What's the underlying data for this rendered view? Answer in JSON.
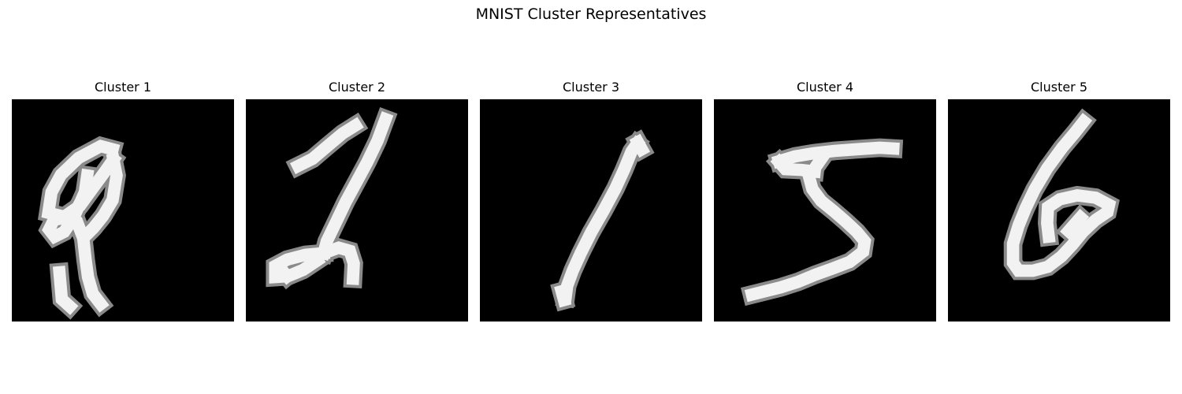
{
  "figure": {
    "title": "MNIST Cluster Representatives"
  },
  "panels": [
    {
      "title": "Cluster 1",
      "strokes": [
        [
          [
            6,
            21.8
          ],
          [
            6.3,
            25.2
          ],
          [
            7.3,
            26.1
          ]
        ],
        [
          [
            9.5,
            9.6
          ],
          [
            9.2,
            11.7
          ],
          [
            7.8,
            14.9
          ],
          [
            6.6,
            16.7
          ],
          [
            5.4,
            17.3
          ],
          [
            4.7,
            16.4
          ],
          [
            5.3,
            15.2
          ],
          [
            7.3,
            14.8
          ],
          [
            8.2,
            15.4
          ],
          [
            9,
            17.5
          ],
          [
            9.3,
            20.2
          ],
          [
            9.6,
            22.4
          ],
          [
            10.2,
            24.5
          ],
          [
            11.2,
            25.8
          ]
        ],
        [
          [
            12.7,
            6.3
          ],
          [
            11.2,
            5.9
          ],
          [
            8.4,
            7.4
          ],
          [
            6.2,
            9.5
          ],
          [
            5,
            11.7
          ],
          [
            4.6,
            14.3
          ],
          [
            6.6,
            14.8
          ],
          [
            8.6,
            13.4
          ],
          [
            10.2,
            11.2
          ],
          [
            11.6,
            9.3
          ],
          [
            12.8,
            7.6
          ]
        ],
        [
          [
            12.8,
            7.6
          ],
          [
            13.2,
            9.6
          ],
          [
            12.7,
            12.7
          ],
          [
            11.5,
            14.7
          ],
          [
            10.3,
            16.2
          ],
          [
            9.4,
            17.1
          ]
        ],
        [
          [
            8.3,
            13.6
          ],
          [
            9.3,
            11.8
          ]
        ]
      ]
    },
    {
      "title": "Cluster 2",
      "strokes": [
        [
          [
            6.6,
            8.4
          ],
          [
            8.4,
            7.5
          ],
          [
            10.4,
            5.8
          ],
          [
            12.2,
            4.3
          ],
          [
            13.8,
            3.3
          ]
        ],
        [
          [
            17.6,
            2.5
          ],
          [
            16.6,
            5.2
          ],
          [
            15.3,
            7.9
          ],
          [
            13.9,
            10.5
          ],
          [
            12.6,
            12.9
          ],
          [
            11.4,
            15.4
          ],
          [
            10.2,
            17.9
          ],
          [
            9.8,
            19.4
          ]
        ],
        [
          [
            9.8,
            19.4
          ],
          [
            11.7,
            18.7
          ],
          [
            13.1,
            19.1
          ],
          [
            13.6,
            20.7
          ],
          [
            13.5,
            22.6
          ]
        ],
        [
          [
            9.8,
            19.4
          ],
          [
            7.5,
            19.6
          ],
          [
            5.2,
            20.2
          ],
          [
            3.7,
            21
          ],
          [
            3.7,
            22.4
          ],
          [
            5.3,
            22.3
          ],
          [
            7.2,
            21.5
          ],
          [
            9,
            20.3
          ]
        ],
        [
          [
            5.2,
            22.3
          ],
          [
            4.7,
            21.7
          ]
        ]
      ]
    },
    {
      "title": "Cluster 3",
      "strokes": [
        [
          [
            19.8,
            5.6
          ],
          [
            19.1,
            6.6
          ],
          [
            18.2,
            8.8
          ],
          [
            17.1,
            11.2
          ],
          [
            15.6,
            14
          ],
          [
            14,
            16.8
          ],
          [
            12.7,
            19.4
          ],
          [
            11.7,
            21.6
          ],
          [
            11,
            23.5
          ],
          [
            10.8,
            25
          ]
        ],
        [
          [
            19.9,
            5.4
          ],
          [
            20.4,
            6.3
          ]
        ],
        [
          [
            10.3,
            24.2
          ],
          [
            10.6,
            25.3
          ]
        ]
      ]
    },
    {
      "title": "Cluster 4",
      "strokes": [
        [
          [
            8.2,
            7.8
          ],
          [
            10.2,
            7.2
          ],
          [
            12.6,
            6.8
          ],
          [
            15.2,
            6.5
          ],
          [
            18,
            6.3
          ],
          [
            20.9,
            6.1
          ],
          [
            22.6,
            6.2
          ]
        ],
        [
          [
            8.2,
            7.9
          ],
          [
            9,
            8.8
          ],
          [
            11,
            8.9
          ],
          [
            12.7,
            9.1
          ]
        ],
        [
          [
            13.6,
            7.4
          ],
          [
            12.9,
            8.4
          ],
          [
            12,
            9.8
          ],
          [
            12.4,
            11.3
          ],
          [
            13.5,
            12.8
          ],
          [
            15.1,
            14.1
          ],
          [
            16.6,
            15.4
          ],
          [
            18,
            16.7
          ],
          [
            19,
            17.9
          ],
          [
            18.8,
            19.2
          ],
          [
            17.1,
            20.5
          ],
          [
            15,
            21.3
          ],
          [
            12.8,
            22.1
          ],
          [
            10.6,
            23
          ],
          [
            8.4,
            23.7
          ],
          [
            6.4,
            24.2
          ],
          [
            4.8,
            24.6
          ]
        ]
      ]
    },
    {
      "title": "Cluster 5",
      "strokes": [
        [
          [
            17.1,
            2.8
          ],
          [
            16,
            4.2
          ],
          [
            14.4,
            6.1
          ],
          [
            12.5,
            8.7
          ],
          [
            10.9,
            11.4
          ],
          [
            9.8,
            13.7
          ],
          [
            8.9,
            15.9
          ],
          [
            8.2,
            18.2
          ],
          [
            8.2,
            20.6
          ],
          [
            8.9,
            21.6
          ],
          [
            10.7,
            21.6
          ],
          [
            12.6,
            21.1
          ],
          [
            14.3,
            19.8
          ],
          [
            15.7,
            18.3
          ],
          [
            17,
            16.7
          ],
          [
            18.6,
            15.2
          ],
          [
            20.1,
            14.2
          ],
          [
            20.3,
            13.3
          ],
          [
            18.6,
            12.4
          ],
          [
            16.3,
            12.1
          ],
          [
            14.1,
            12.6
          ],
          [
            12.6,
            13.6
          ],
          [
            12.5,
            15.6
          ],
          [
            12.7,
            17.3
          ]
        ],
        [
          [
            15.2,
            16.6
          ],
          [
            16.7,
            14.9
          ]
        ]
      ]
    }
  ]
}
